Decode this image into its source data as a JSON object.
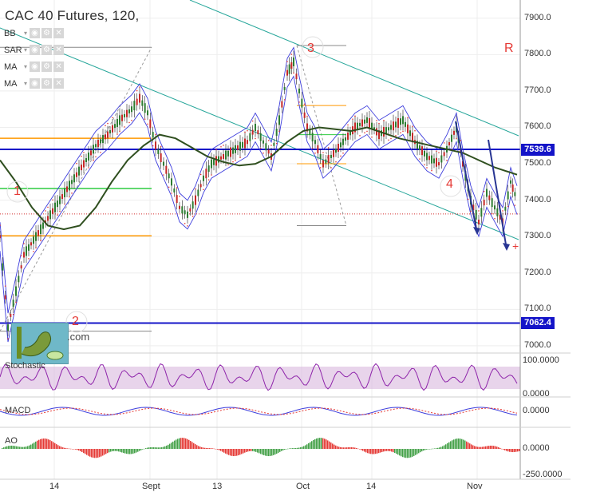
{
  "header": {
    "title": "CAC 40 Futures, 120,",
    "indicators": [
      {
        "name": "BB"
      },
      {
        "name": "SAR"
      },
      {
        "name": "MA"
      },
      {
        "name": "MA"
      }
    ]
  },
  "corner_mark": "R",
  "wave_labels": [
    "1",
    "2",
    "3",
    "4"
  ],
  "logo_text": ".com",
  "colors": {
    "channel": "#26a69a",
    "hline_blue": "#1414c8",
    "bb": "#3c3cdc",
    "ma": "#2f4f1f",
    "orange": "#ff9800",
    "green": "#2ecc40",
    "red_dotted": "#d32f2f",
    "stoch_fill": "#d9b7de",
    "stoch_line": "#8e24aa",
    "macd_line": "#3c3cdc",
    "signal": "#e53935",
    "ao_up": "#43a047",
    "ao_down": "#e53935"
  },
  "chart_data": [
    {
      "type": "line",
      "pane": "price",
      "instrument": "CAC 40 Futures",
      "interval": "120",
      "y_ticks": [
        "7900.0",
        "7800.0",
        "7700.0",
        "7600.0",
        "7500.0",
        "7400.0",
        "7300.0",
        "7200.0",
        "7100.0",
        "7000.0"
      ],
      "ylim": [
        6980,
        7950
      ],
      "price_tags": [
        {
          "label": "7539.6",
          "value": 7539.6
        },
        {
          "label": "7062.4",
          "value": 7062.4
        }
      ],
      "x_ticks": [
        "14",
        "Sept",
        "13",
        "Oct",
        "14",
        "Nov"
      ],
      "series": [
        {
          "name": "close",
          "x": [
            0,
            10,
            20,
            30,
            45,
            60,
            75,
            90,
            105,
            120,
            135,
            150,
            165,
            175,
            185,
            195,
            205,
            215,
            225,
            235,
            245,
            255,
            265,
            280,
            295,
            310,
            320,
            330,
            340,
            350,
            360,
            368,
            375,
            385,
            395,
            405,
            415,
            430,
            445,
            460,
            475,
            490,
            505,
            520,
            535,
            550,
            560,
            572,
            580,
            590,
            600,
            610,
            620,
            630,
            640,
            648
          ],
          "y": [
            7300,
            7050,
            7150,
            7250,
            7300,
            7350,
            7400,
            7450,
            7500,
            7550,
            7580,
            7620,
            7650,
            7680,
            7640,
            7550,
            7500,
            7450,
            7380,
            7360,
            7400,
            7460,
            7500,
            7520,
            7540,
            7560,
            7600,
            7560,
            7520,
            7620,
            7750,
            7780,
            7700,
            7600,
            7560,
            7500,
            7520,
            7560,
            7600,
            7620,
            7580,
            7600,
            7620,
            7560,
            7520,
            7500,
            7540,
            7600,
            7500,
            7400,
            7340,
            7420,
            7380,
            7340,
            7450,
            7400
          ]
        },
        {
          "name": "ma",
          "x": [
            0,
            20,
            40,
            60,
            80,
            100,
            120,
            140,
            160,
            180,
            200,
            220,
            240,
            260,
            280,
            300,
            320,
            340,
            360,
            380,
            400,
            420,
            440,
            460,
            480,
            500,
            520,
            540,
            560,
            580,
            600,
            620,
            648
          ],
          "y": [
            7510,
            7450,
            7380,
            7330,
            7320,
            7330,
            7380,
            7450,
            7510,
            7550,
            7580,
            7570,
            7545,
            7520,
            7505,
            7495,
            7500,
            7520,
            7560,
            7590,
            7600,
            7595,
            7590,
            7600,
            7585,
            7570,
            7560,
            7550,
            7540,
            7530,
            7510,
            7490,
            7470
          ]
        }
      ]
    },
    {
      "type": "line",
      "pane": "stochastic",
      "name": "Stochastic",
      "y_ticks": [
        "100.0000",
        "0.0000"
      ],
      "ylim": [
        0,
        100
      ]
    },
    {
      "type": "line",
      "pane": "macd",
      "name": "MACD",
      "y_ticks": [
        "0.0000"
      ]
    },
    {
      "type": "bar",
      "pane": "ao",
      "name": "AO",
      "y_ticks": [
        "0.0000",
        "-250.0000"
      ]
    }
  ]
}
